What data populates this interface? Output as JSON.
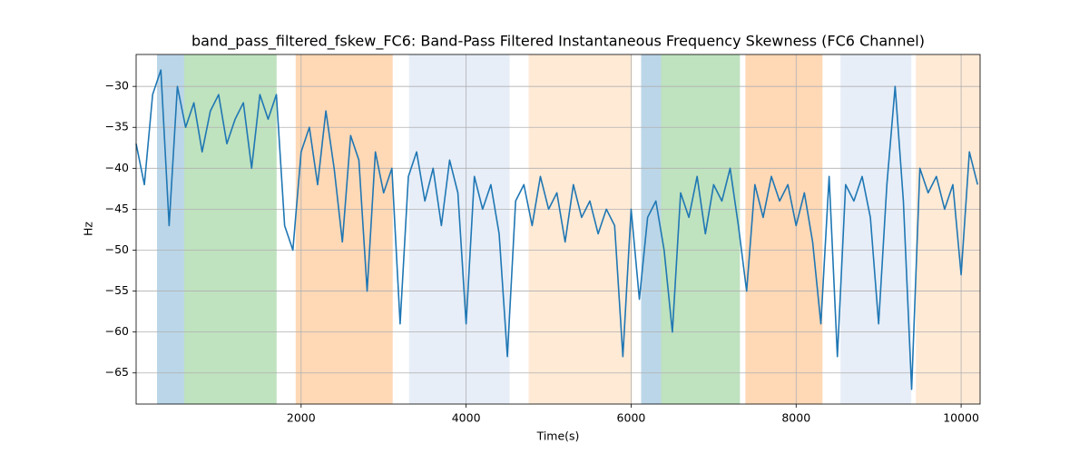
{
  "chart_data": {
    "type": "line",
    "title": "band_pass_filtered_fskew_FC6: Band-Pass Filtered Instantaneous Frequency Skewness (FC6 Channel)",
    "x_label": "Time(s)",
    "y_label": "Hz",
    "xlim": [
      0,
      10230
    ],
    "ylim": [
      -68.8,
      -26.1
    ],
    "xticks": [
      2000,
      4000,
      6000,
      8000,
      10000
    ],
    "yticks": [
      {
        "value": -65,
        "label": "−65"
      },
      {
        "value": -60,
        "label": "−60"
      },
      {
        "value": -55,
        "label": "−55"
      },
      {
        "value": -50,
        "label": "−50"
      },
      {
        "value": -45,
        "label": "−45"
      },
      {
        "value": -40,
        "label": "−40"
      },
      {
        "value": -35,
        "label": "−35"
      },
      {
        "value": -30,
        "label": "−30"
      }
    ],
    "grid": true,
    "spans": [
      {
        "x0": 253,
        "x1": 582,
        "color": "#1f77b4"
      },
      {
        "x0": 582,
        "x1": 1703,
        "color": "#2ca02c"
      },
      {
        "x0": 1934,
        "x1": 3110,
        "color": "#ff7f0e"
      },
      {
        "x0": 3308,
        "x1": 4527,
        "color": "#aec7e8"
      },
      {
        "x0": 4758,
        "x1": 6011,
        "color": "#ffbb78"
      },
      {
        "x0": 6121,
        "x1": 6363,
        "color": "#1f77b4"
      },
      {
        "x0": 6363,
        "x1": 7319,
        "color": "#2ca02c"
      },
      {
        "x0": 7385,
        "x1": 8319,
        "color": "#ff7f0e"
      },
      {
        "x0": 8538,
        "x1": 9396,
        "color": "#aec7e8"
      },
      {
        "x0": 9451,
        "x1": 10231,
        "color": "#ffbb78"
      }
    ],
    "series": [
      {
        "color": "#1f77b4",
        "x": [
          0,
          100,
          200,
          300,
          400,
          500,
          600,
          700,
          800,
          900,
          1000,
          1100,
          1200,
          1300,
          1400,
          1500,
          1600,
          1700,
          1800,
          1900,
          2000,
          2100,
          2200,
          2300,
          2400,
          2500,
          2600,
          2700,
          2800,
          2900,
          3000,
          3100,
          3200,
          3300,
          3400,
          3500,
          3600,
          3700,
          3800,
          3900,
          4000,
          4100,
          4200,
          4300,
          4400,
          4500,
          4600,
          4700,
          4800,
          4900,
          5000,
          5100,
          5200,
          5300,
          5400,
          5500,
          5600,
          5700,
          5800,
          5900,
          6000,
          6100,
          6200,
          6300,
          6400,
          6500,
          6600,
          6700,
          6800,
          6900,
          7000,
          7100,
          7200,
          7300,
          7400,
          7500,
          7600,
          7700,
          7800,
          7900,
          8000,
          8100,
          8200,
          8300,
          8400,
          8500,
          8600,
          8700,
          8800,
          8900,
          9000,
          9100,
          9200,
          9300,
          9400,
          9500,
          9600,
          9700,
          9800,
          9900,
          10000,
          10100,
          10200
        ],
        "values": [
          -37,
          -42,
          -31,
          -28,
          -47,
          -30,
          -35,
          -32,
          -38,
          -33,
          -31,
          -37,
          -34,
          -32,
          -40,
          -31,
          -34,
          -31,
          -47,
          -50,
          -38,
          -35,
          -42,
          -33,
          -40,
          -49,
          -36,
          -39,
          -55,
          -38,
          -43,
          -40,
          -59,
          -41,
          -38,
          -44,
          -40,
          -47,
          -39,
          -43,
          -59,
          -41,
          -45,
          -42,
          -48,
          -63,
          -44,
          -42,
          -47,
          -41,
          -45,
          -43,
          -49,
          -42,
          -46,
          -44,
          -48,
          -45,
          -47,
          -63,
          -45,
          -56,
          -46,
          -44,
          -50,
          -60,
          -43,
          -46,
          -41,
          -48,
          -42,
          -44,
          -40,
          -47,
          -55,
          -42,
          -46,
          -41,
          -44,
          -42,
          -47,
          -43,
          -49,
          -59,
          -41,
          -63,
          -42,
          -44,
          -41,
          -46,
          -59,
          -42,
          -30,
          -44,
          -67,
          -40,
          -43,
          -41,
          -45,
          -42,
          -53,
          -38,
          -42
        ]
      }
    ]
  }
}
